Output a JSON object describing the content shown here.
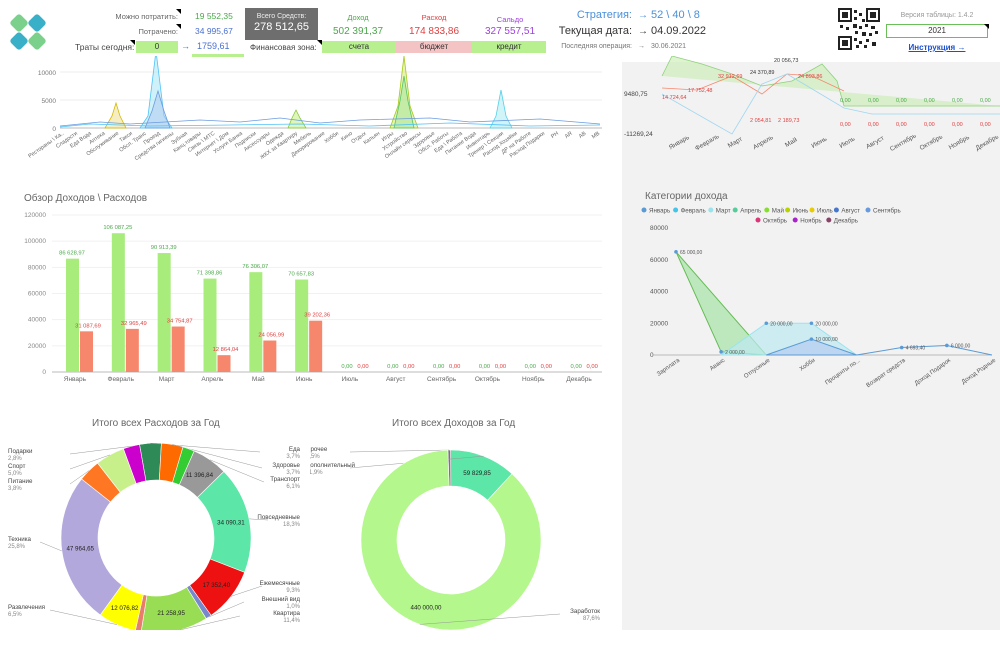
{
  "header": {
    "can_spend_label": "Можно потратить:",
    "can_spend_value": "19 552,35",
    "spent_label": "Потрачено:",
    "spent_value": "34 995,67",
    "today_label": "Траты сегодня:",
    "today_value": "0",
    "today_arrow": "→",
    "today_total": "1759,61",
    "total_label": "Всего Средств:",
    "total_value": "278 512,65",
    "zone_label": "Финансовая зона:",
    "income_label": "Доход",
    "income_value": "502 391,37",
    "expense_label": "Расход",
    "expense_value": "174 833,86",
    "balance_label": "Сальдо",
    "balance_value": "327 557,51",
    "btn_accounts": "счета",
    "btn_budget": "бюджет",
    "btn_credit": "кредит",
    "strategy_label": "Стратегия:",
    "strategy_arrow": "→",
    "strategy_value": "52 \\ 40 \\ 8",
    "date_label": "Текущая дата:",
    "date_arrow": "→",
    "date_value": "04.09.2022",
    "last_op_label": "Последняя операция:",
    "last_op_arrow": "→",
    "last_op_value": "30.06.2021",
    "version_label": "Версия таблицы: 1.4.2",
    "year_value": "2021",
    "instruction_link": "Инструкция →"
  },
  "colors": {
    "green": "#a8ec7c",
    "red": "#f7876c",
    "accent_blue": "#4a90d9",
    "panel": "#f2f2f2"
  },
  "top_left_chart": {
    "y_ticks": [
      "10000",
      "5000",
      "0"
    ],
    "categories": [
      "Рестораны \\ Ка..",
      "Сладости",
      "Еда Вода",
      "Аптека",
      "Обслуживание",
      "Такси",
      "Обсл. Транс",
      "Проезд",
      "Средства гигиены",
      "Зубная",
      "Канц.товары",
      "Связь \\ МТС",
      "Интернет \\ Дом",
      "Услуги Банка",
      "Подписки",
      "Аксессуары",
      "Одежда",
      "ЖКХ за Квартиру",
      "Мебель",
      "Декорирование",
      "Хобби",
      "Кино",
      "Отдых",
      "Кальян",
      "Игры",
      "Устройство",
      "Онлайн сервисы",
      "Здоровье",
      "Обсл. Работы",
      "Еда \\ Работа",
      "Питание Вода",
      "Инвентарь",
      "Тренер \\ Секции",
      "Расход Хозяйки",
      "ДР на Работе",
      "Расход Подарки",
      "PH",
      "AR",
      "AB",
      "MB"
    ]
  },
  "top_right_chart": {
    "y_labels": [
      "9480,75",
      "-11269,24"
    ],
    "months": [
      "Январь",
      "Февраль",
      "Март",
      "Апрель",
      "Май",
      "Июнь",
      "Июль",
      "Август",
      "Сентябрь",
      "Октябрь",
      "Ноябрь",
      "Декабрь"
    ],
    "value_labels": [
      "14 724,64",
      "17 752,48",
      "32 912,69",
      "24 370,89",
      "20 056,73",
      "24 893,86",
      "2 054,81",
      "2 189,73",
      "0,00"
    ]
  },
  "income_expense_chart": {
    "title": "Обзор Доходов \\ Расходов",
    "y_ticks": [
      "120000",
      "100000",
      "80000",
      "60000",
      "40000",
      "20000",
      "0"
    ],
    "months": [
      "Январь",
      "Февраль",
      "Март",
      "Апрель",
      "Май",
      "Июнь",
      "Июль",
      "Август",
      "Сентябрь",
      "Октябрь",
      "Ноябрь",
      "Декабрь"
    ],
    "income": [
      86628.97,
      106087.25,
      90913.39,
      71398.86,
      76306.07,
      70657.83,
      0,
      0,
      0,
      0,
      0,
      0
    ],
    "expense": [
      31087.69,
      32965.49,
      34754.87,
      12864.04,
      24056.99,
      39202.36,
      0,
      0,
      0,
      0,
      0,
      0
    ],
    "income_labels": [
      "86 628,97",
      "106 087,25",
      "90 913,39",
      "71 398,86",
      "76 306,07",
      "70 657,83",
      "0,00",
      "0,00",
      "0,00",
      "0,00",
      "0,00",
      "0,00"
    ],
    "expense_labels": [
      "31 087,69",
      "32 965,49",
      "34 754,87",
      "12 864,04",
      "24 056,99",
      "39 202,36",
      "0,00",
      "0,00",
      "0,00",
      "0,00",
      "0,00",
      "0,00"
    ]
  },
  "chart_data": [
    {
      "type": "bar",
      "title": "Обзор Доходов \\ Расходов",
      "categories": [
        "Январь",
        "Февраль",
        "Март",
        "Апрель",
        "Май",
        "Июнь",
        "Июль",
        "Август",
        "Сентябрь",
        "Октябрь",
        "Ноябрь",
        "Декабрь"
      ],
      "series": [
        {
          "values": [
            86628.97,
            106087.25,
            90913.39,
            71398.86,
            76306.07,
            70657.83,
            0,
            0,
            0,
            0,
            0,
            0
          ]
        },
        {
          "values": [
            31087.69,
            32965.49,
            34754.87,
            12864.04,
            24056.99,
            39202.36,
            0,
            0,
            0,
            0,
            0,
            0
          ]
        }
      ],
      "ylim": [
        0,
        120000
      ]
    },
    {
      "type": "pie",
      "title": "Итого всех Расходов за Год",
      "slices": [
        {
          "label": "Еда",
          "percent": 3.7
        },
        {
          "label": "Здоровье",
          "percent": 3.7
        },
        {
          "label": "Транспорт",
          "percent": 6.1,
          "value": 11396.84
        },
        {
          "label": "Повседневные",
          "percent": 18.3,
          "value": 34090.31
        },
        {
          "label": "Ежемесячные",
          "percent": 9.3,
          "value": 17352.4
        },
        {
          "label": "Внешний вид",
          "percent": 1.0
        },
        {
          "label": "Квартира",
          "percent": 11.4,
          "value": 21258.95
        },
        {
          "label": "Развлечения",
          "percent": 6.5,
          "value": 12076.82
        },
        {
          "label": "Техника",
          "percent": 25.8,
          "value": 47964.65
        },
        {
          "label": "Питание",
          "percent": 3.8
        },
        {
          "label": "Спорт",
          "percent": 5.0
        },
        {
          "label": "Подарки",
          "percent": 2.8
        }
      ]
    },
    {
      "type": "pie",
      "title": "Итого всех Доходов за Год",
      "slices": [
        {
          "label": "Заработок",
          "percent": 87.6,
          "value": 440000
        },
        {
          "label": "Дополнительный",
          "percent": 11.9,
          "value": 59829.85
        },
        {
          "label": "Прочее",
          "percent": 0.5
        }
      ]
    },
    {
      "type": "area",
      "title": "Категории дохода",
      "categories": [
        "Зарплата",
        "Аванс",
        "Отпускные",
        "Хобби",
        "Проценты по...",
        "Возврат средств",
        "Доход Подарок",
        "Доход Родные"
      ],
      "ylim": [
        0,
        80000
      ]
    }
  ],
  "expense_donut": {
    "title": "Итого всех Расходов за Год",
    "slices": [
      {
        "label": "Еда",
        "pct": "3,7%",
        "value": 3.7,
        "color": "#2e8b57",
        "inner": ""
      },
      {
        "label": "Здоровье",
        "pct": "3,7%",
        "value": 3.7,
        "color": "#ff6a00",
        "inner": ""
      },
      {
        "label": "",
        "pct": "",
        "value": 2.0,
        "color": "#33cc33",
        "inner": ""
      },
      {
        "label": "Транспорт",
        "pct": "6,1%",
        "value": 6.1,
        "color": "#999999",
        "inner": "11 396,84"
      },
      {
        "label": "Повседневные",
        "pct": "18,3%",
        "value": 18.3,
        "color": "#5ce6a8",
        "inner": "34 090,31"
      },
      {
        "label": "Ежемесячные",
        "pct": "9,3%",
        "value": 9.3,
        "color": "#ee1111",
        "inner": "17 352,40"
      },
      {
        "label": "Внешний вид",
        "pct": "1,0%",
        "value": 1.0,
        "color": "#7788cc",
        "inner": ""
      },
      {
        "label": "Квартира",
        "pct": "11,4%",
        "value": 11.4,
        "color": "#99dd55",
        "inner": "21 258,95"
      },
      {
        "label": "",
        "pct": "",
        "value": 1.0,
        "color": "#e67e6b",
        "inner": ""
      },
      {
        "label": "Развлечения",
        "pct": "6,5%",
        "value": 6.5,
        "color": "#ffff00",
        "inner": "12 076,82"
      },
      {
        "label": "Техника",
        "pct": "25,8%",
        "value": 25.8,
        "color": "#b3a8dc",
        "inner": "47 964,65"
      },
      {
        "label": "Питание",
        "pct": "3,8%",
        "value": 3.8,
        "color": "#ff7722",
        "inner": ""
      },
      {
        "label": "Спорт",
        "pct": "5,0%",
        "value": 5.0,
        "color": "#c8f08a",
        "inner": ""
      },
      {
        "label": "Подарки",
        "pct": "2,8%",
        "value": 2.8,
        "color": "#cc00cc",
        "inner": ""
      }
    ]
  },
  "income_donut": {
    "title": "Итого всех Доходов за Год",
    "slices": [
      {
        "label": "Прочее",
        "pct": "0,5%",
        "value": 0.5,
        "color": "#777777",
        "inner": ""
      },
      {
        "label": "Дополнительный",
        "pct": "11,9%",
        "value": 11.9,
        "color": "#5ce6a8",
        "inner": "59 829,85"
      },
      {
        "label": "Заработок",
        "pct": "87,6%",
        "value": 87.6,
        "color": "#b4f78c",
        "inner": "440 000,00"
      }
    ]
  },
  "income_categories": {
    "title": "Категории дохода",
    "legend_row1": [
      "Январь",
      "Февраль",
      "Март",
      "Апрель",
      "Май",
      "Июнь",
      "Июль",
      "Август",
      "Сентябрь"
    ],
    "legend_row2": [
      "Октябрь",
      "Ноябрь",
      "Декабрь"
    ],
    "legend_colors1": [
      "#5b9bd5",
      "#44c4e8",
      "#99e3ee",
      "#55cc99",
      "#88dd33",
      "#b8d400",
      "#e6cc00",
      "#4477cc",
      "#6699dd"
    ],
    "legend_colors2": [
      "#dd3377",
      "#aa22cc",
      "#884466"
    ],
    "y_ticks": [
      "80000",
      "60000",
      "40000",
      "20000",
      "0"
    ],
    "categories": [
      "Зарплата",
      "Аванс",
      "Отпускные",
      "Хобби",
      "Проценты по...",
      "Возврат средств",
      "Доход Подарок",
      "Доход Родные"
    ],
    "labels": [
      "65 000,00",
      "2 000,00",
      "20 000,00",
      "20 000,00",
      "10 000,00",
      "4 693,40",
      "6 000,00"
    ]
  }
}
